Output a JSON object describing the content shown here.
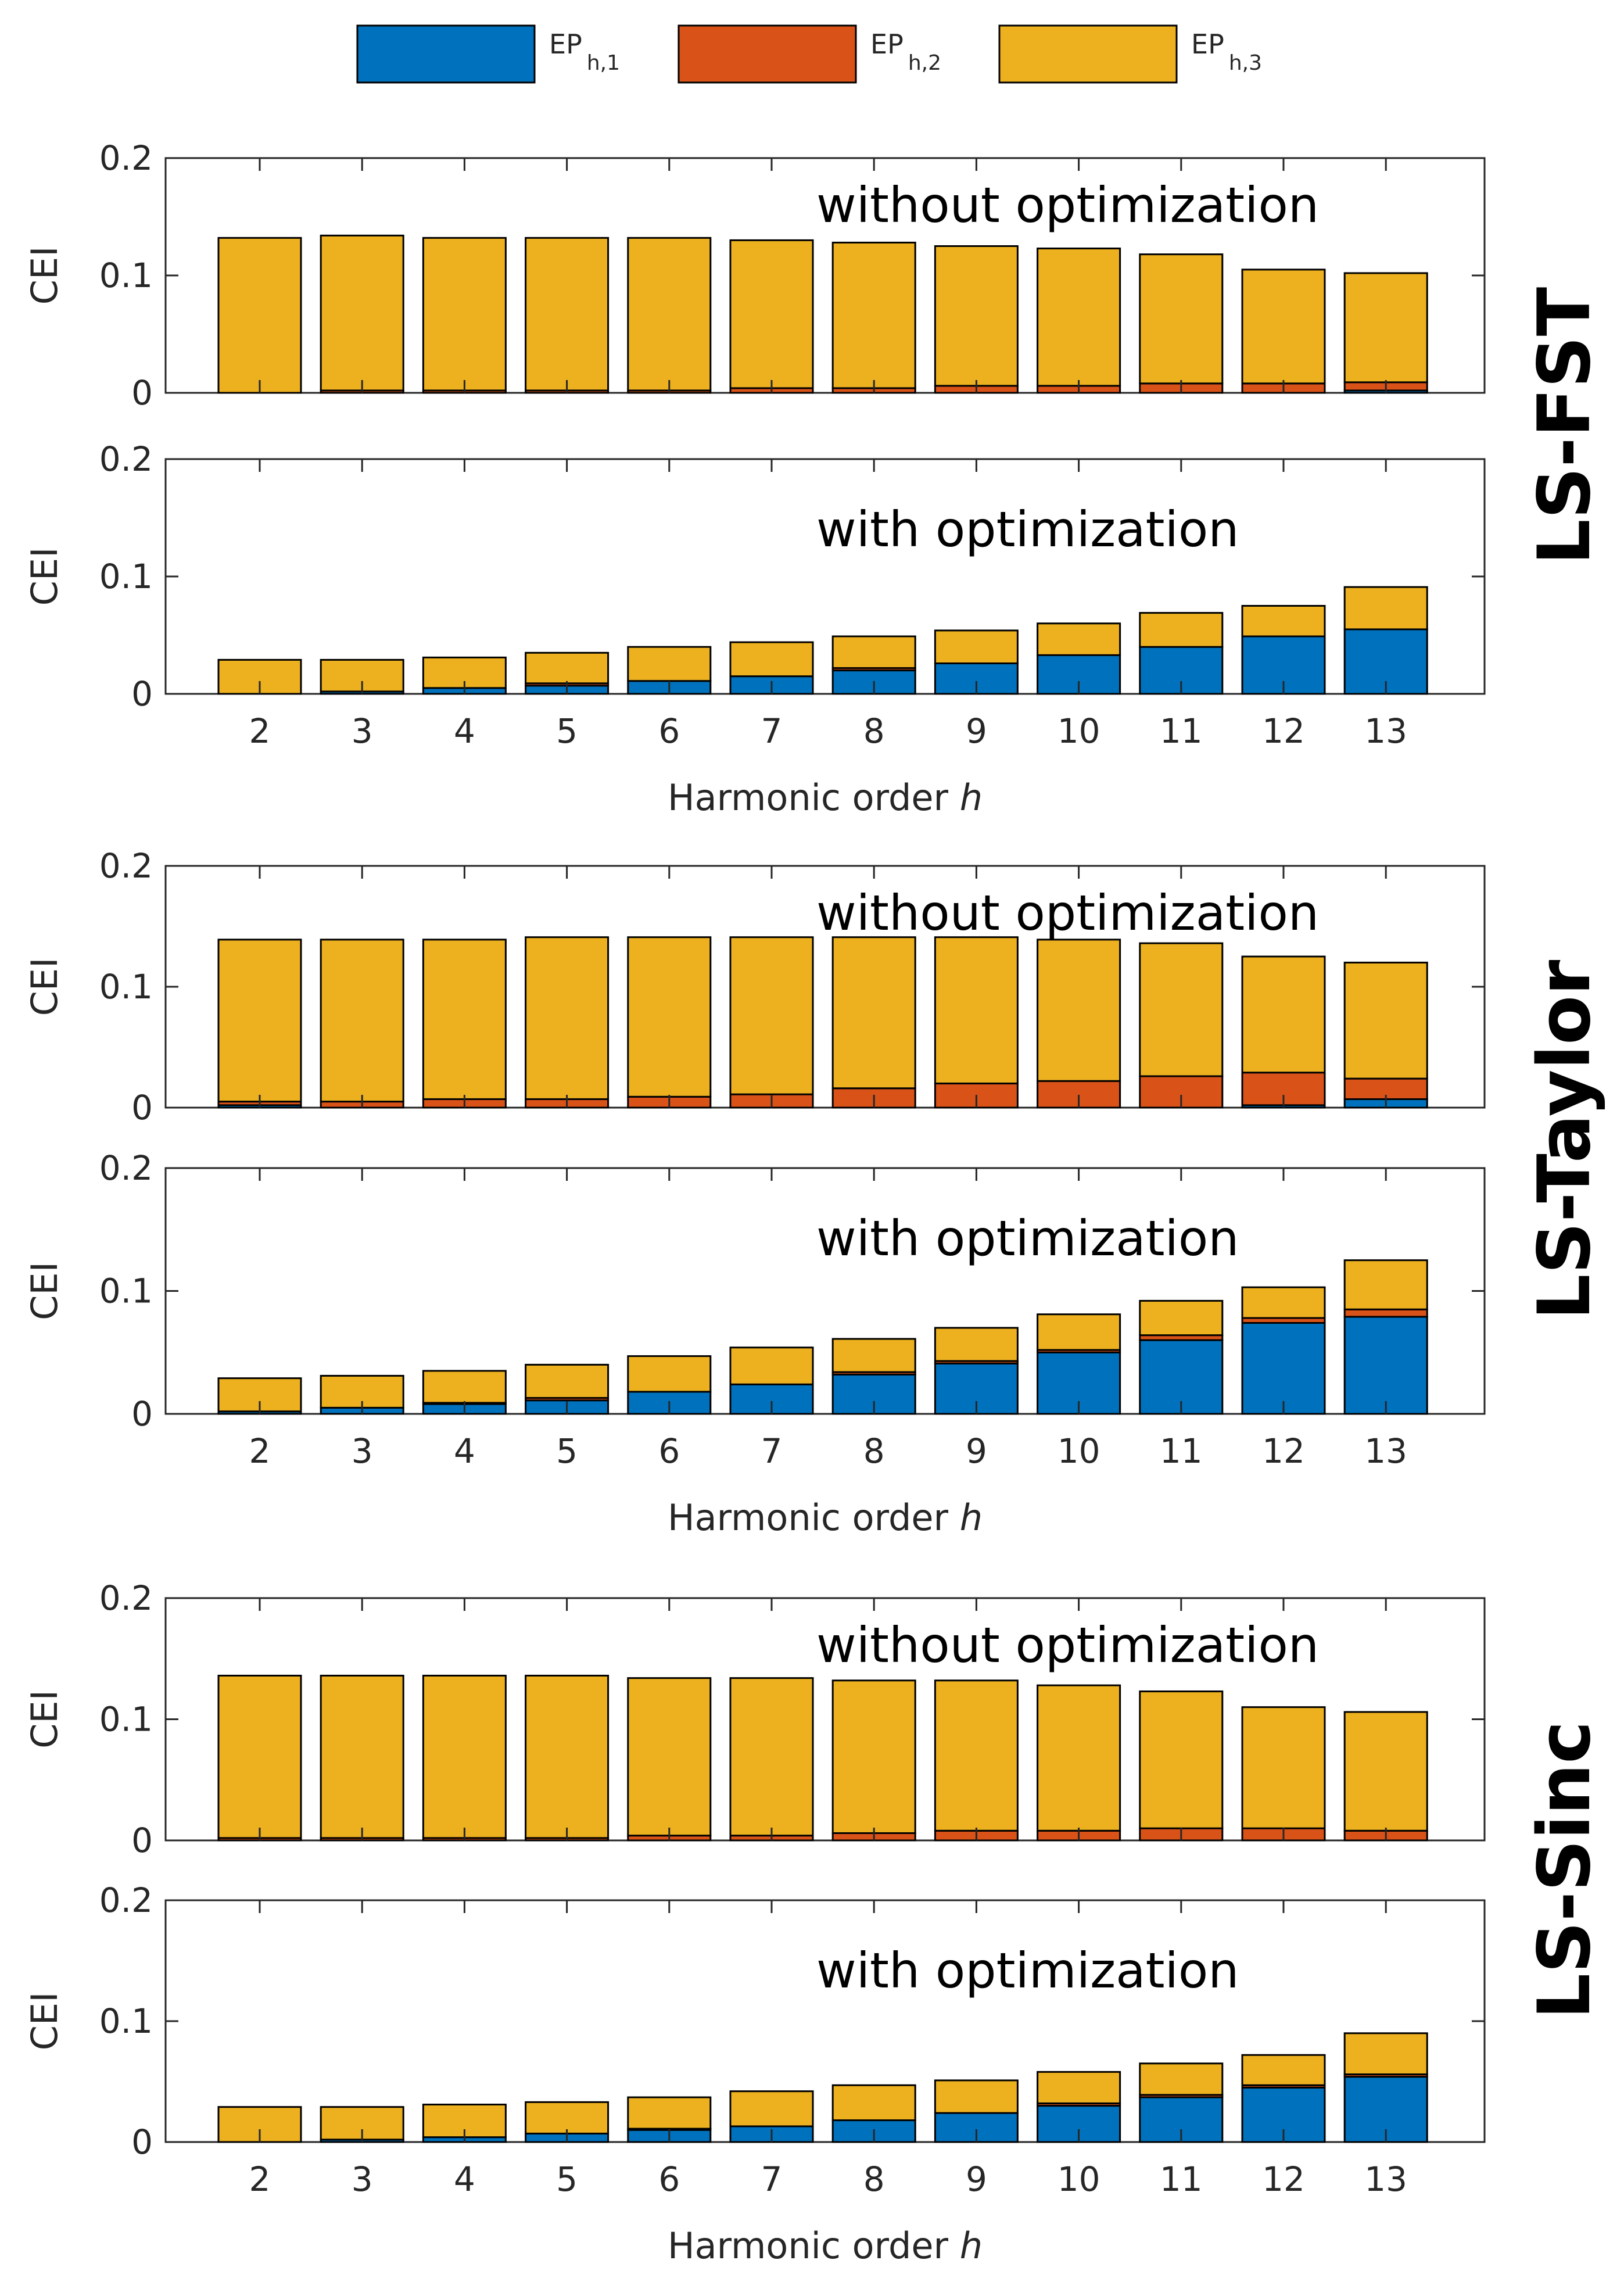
{
  "colors": {
    "ep1": "#0072BD",
    "ep2": "#D95319",
    "ep3": "#EDB120",
    "axis": "#262626",
    "barEdge": "#000000"
  },
  "legend": [
    {
      "main": "EP",
      "sub": "h,1",
      "color": "#0072BD"
    },
    {
      "main": "EP",
      "sub": "h,2",
      "color": "#D95319"
    },
    {
      "main": "EP",
      "sub": "h,3",
      "color": "#EDB120"
    }
  ],
  "methods": [
    "LS-FST",
    "LS-Taylor",
    "LS-Sinc"
  ],
  "chart_data": [
    {
      "type": "bar",
      "stacked": true,
      "method": "LS-FST",
      "annotation": "without optimization",
      "ylabel": "CEI",
      "xlabel": "",
      "ylim": [
        0,
        0.2
      ],
      "yticks": [
        "0",
        "0.1",
        "0.2"
      ],
      "categories": [
        "2",
        "3",
        "4",
        "5",
        "6",
        "7",
        "8",
        "9",
        "10",
        "11",
        "12",
        "13"
      ],
      "series": [
        {
          "name": "EP h,1",
          "values": [
            0,
            0,
            0,
            0,
            0,
            0,
            0,
            0,
            0,
            0,
            0,
            0.002
          ]
        },
        {
          "name": "EP h,2",
          "values": [
            0,
            0.002,
            0.002,
            0.002,
            0.002,
            0.004,
            0.004,
            0.006,
            0.006,
            0.008,
            0.008,
            0.007
          ]
        },
        {
          "name": "EP h,3",
          "values": [
            0.132,
            0.132,
            0.13,
            0.13,
            0.13,
            0.126,
            0.124,
            0.119,
            0.117,
            0.11,
            0.097,
            0.093
          ]
        }
      ]
    },
    {
      "type": "bar",
      "stacked": true,
      "method": "LS-FST",
      "annotation": "with optimization",
      "ylabel": "CEI",
      "xlabel": "Harmonic order h",
      "ylim": [
        0,
        0.2
      ],
      "yticks": [
        "0",
        "0.1",
        "0.2"
      ],
      "categories": [
        "2",
        "3",
        "4",
        "5",
        "6",
        "7",
        "8",
        "9",
        "10",
        "11",
        "12",
        "13"
      ],
      "series": [
        {
          "name": "EP h,1",
          "values": [
            0,
            0.002,
            0.005,
            0.007,
            0.011,
            0.015,
            0.02,
            0.026,
            0.033,
            0.04,
            0.049,
            0.055
          ]
        },
        {
          "name": "EP h,2",
          "values": [
            0,
            0,
            0,
            0.002,
            0,
            0,
            0.002,
            0,
            0,
            0,
            0,
            0
          ]
        },
        {
          "name": "EP h,3",
          "values": [
            0.029,
            0.027,
            0.026,
            0.026,
            0.029,
            0.029,
            0.027,
            0.028,
            0.027,
            0.029,
            0.026,
            0.036
          ]
        }
      ]
    },
    {
      "type": "bar",
      "stacked": true,
      "method": "LS-Taylor",
      "annotation": "without optimization",
      "ylabel": "CEI",
      "xlabel": "",
      "ylim": [
        0,
        0.2
      ],
      "yticks": [
        "0",
        "0.1",
        "0.2"
      ],
      "categories": [
        "2",
        "3",
        "4",
        "5",
        "6",
        "7",
        "8",
        "9",
        "10",
        "11",
        "12",
        "13"
      ],
      "series": [
        {
          "name": "EP h,1",
          "values": [
            0.002,
            0,
            0,
            0,
            0,
            0,
            0,
            0,
            0,
            0,
            0.002,
            0.007
          ]
        },
        {
          "name": "EP h,2",
          "values": [
            0.003,
            0.005,
            0.007,
            0.007,
            0.009,
            0.011,
            0.016,
            0.02,
            0.022,
            0.026,
            0.027,
            0.017
          ]
        },
        {
          "name": "EP h,3",
          "values": [
            0.134,
            0.134,
            0.132,
            0.134,
            0.132,
            0.13,
            0.125,
            0.121,
            0.117,
            0.11,
            0.096,
            0.096
          ]
        }
      ]
    },
    {
      "type": "bar",
      "stacked": true,
      "method": "LS-Taylor",
      "annotation": "with optimization",
      "ylabel": "CEI",
      "xlabel": "Harmonic order h",
      "ylim": [
        0,
        0.2
      ],
      "yticks": [
        "0",
        "0.1",
        "0.2"
      ],
      "categories": [
        "2",
        "3",
        "4",
        "5",
        "6",
        "7",
        "8",
        "9",
        "10",
        "11",
        "12",
        "13"
      ],
      "series": [
        {
          "name": "EP h,1",
          "values": [
            0.002,
            0.005,
            0.008,
            0.011,
            0.018,
            0.024,
            0.032,
            0.041,
            0.05,
            0.06,
            0.074,
            0.079
          ]
        },
        {
          "name": "EP h,2",
          "values": [
            0,
            0,
            0.001,
            0.002,
            0,
            0,
            0.002,
            0.002,
            0.002,
            0.004,
            0.004,
            0.006
          ]
        },
        {
          "name": "EP h,3",
          "values": [
            0.027,
            0.026,
            0.026,
            0.027,
            0.029,
            0.03,
            0.027,
            0.027,
            0.029,
            0.028,
            0.025,
            0.04
          ]
        }
      ]
    },
    {
      "type": "bar",
      "stacked": true,
      "method": "LS-Sinc",
      "annotation": "without optimization",
      "ylabel": "CEI",
      "xlabel": "",
      "ylim": [
        0,
        0.2
      ],
      "yticks": [
        "0",
        "0.1",
        "0.2"
      ],
      "categories": [
        "2",
        "3",
        "4",
        "5",
        "6",
        "7",
        "8",
        "9",
        "10",
        "11",
        "12",
        "13"
      ],
      "series": [
        {
          "name": "EP h,1",
          "values": [
            0,
            0,
            0,
            0,
            0,
            0,
            0,
            0,
            0,
            0,
            0,
            0
          ]
        },
        {
          "name": "EP h,2",
          "values": [
            0.002,
            0.002,
            0.002,
            0.002,
            0.004,
            0.004,
            0.006,
            0.008,
            0.008,
            0.01,
            0.01,
            0.008
          ]
        },
        {
          "name": "EP h,3",
          "values": [
            0.134,
            0.134,
            0.134,
            0.134,
            0.13,
            0.13,
            0.126,
            0.124,
            0.12,
            0.113,
            0.1,
            0.098
          ]
        }
      ]
    },
    {
      "type": "bar",
      "stacked": true,
      "method": "LS-Sinc",
      "annotation": "with optimization",
      "ylabel": "CEI",
      "xlabel": "Harmonic order h",
      "ylim": [
        0,
        0.2
      ],
      "yticks": [
        "0",
        "0.1",
        "0.2"
      ],
      "categories": [
        "2",
        "3",
        "4",
        "5",
        "6",
        "7",
        "8",
        "9",
        "10",
        "11",
        "12",
        "13"
      ],
      "series": [
        {
          "name": "EP h,1",
          "values": [
            0,
            0.002,
            0.004,
            0.007,
            0.01,
            0.013,
            0.018,
            0.024,
            0.03,
            0.037,
            0.045,
            0.054
          ]
        },
        {
          "name": "EP h,2",
          "values": [
            0,
            0,
            0,
            0,
            0.001,
            0,
            0,
            0,
            0.002,
            0.002,
            0.002,
            0.002
          ]
        },
        {
          "name": "EP h,3",
          "values": [
            0.029,
            0.027,
            0.027,
            0.026,
            0.026,
            0.029,
            0.029,
            0.027,
            0.026,
            0.026,
            0.025,
            0.034
          ]
        }
      ]
    }
  ]
}
